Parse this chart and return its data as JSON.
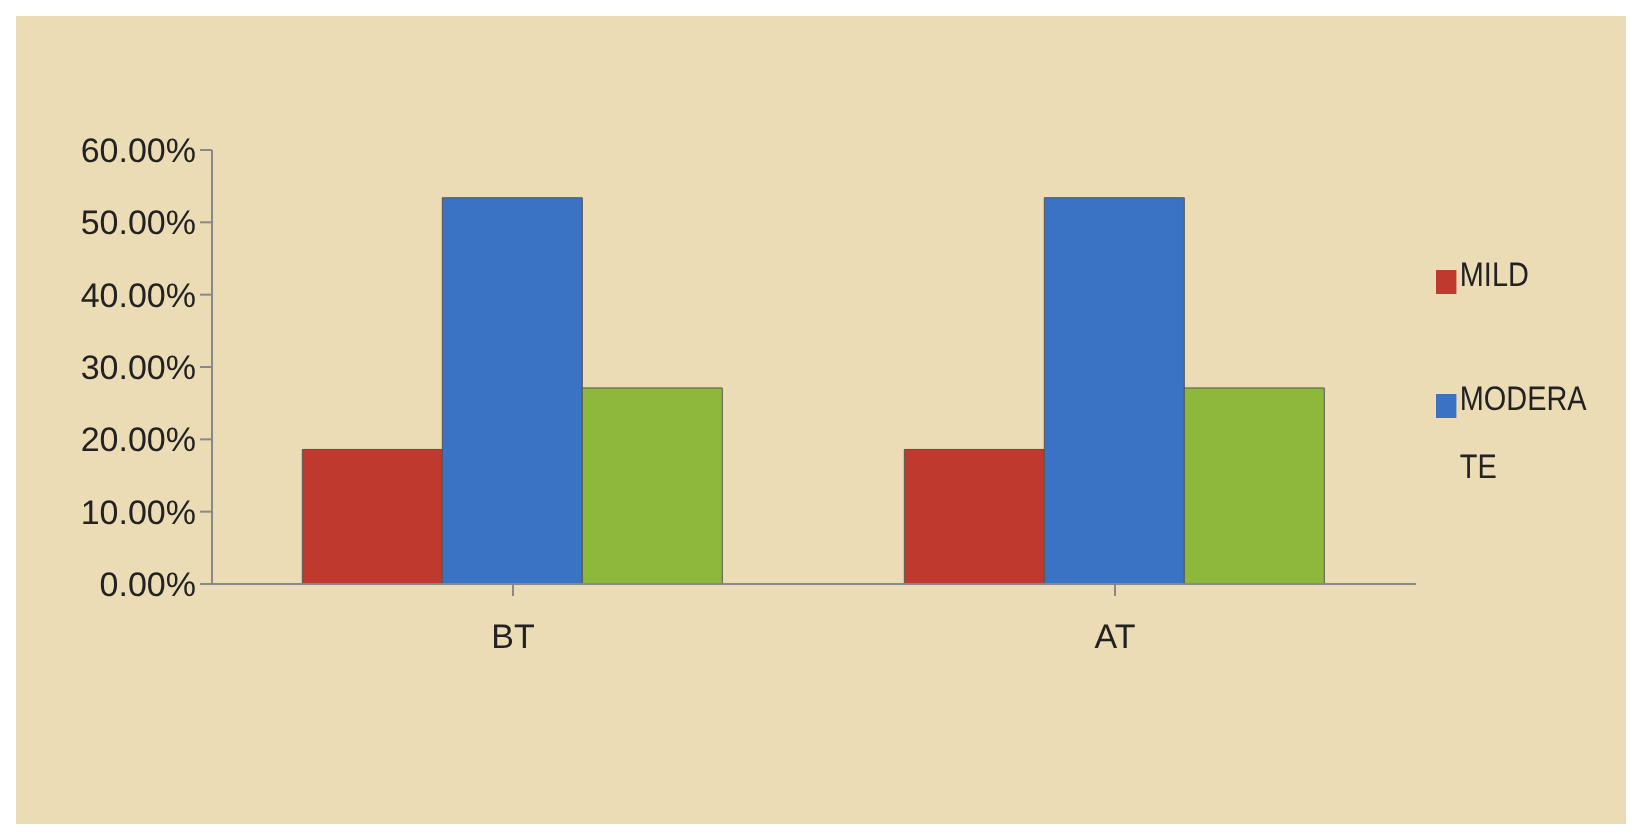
{
  "chart_data": {
    "type": "bar",
    "categories": [
      "BT",
      "AT"
    ],
    "series": [
      {
        "name": "MILD",
        "color": "#c0392f",
        "values": [
          18.6,
          18.6
        ]
      },
      {
        "name": "MODERATE",
        "color": "#3a72c4",
        "values": [
          53.4,
          53.4
        ]
      },
      {
        "color": "#8db83c",
        "values": [
          27.1,
          27.1
        ]
      }
    ],
    "ylim": [
      0,
      60
    ],
    "yticks": [
      {
        "value": 0,
        "label": "0.00%"
      },
      {
        "value": 10,
        "label": "10.00%"
      },
      {
        "value": 20,
        "label": "20.00%"
      },
      {
        "value": 30,
        "label": "30.00%"
      },
      {
        "value": 40,
        "label": "40.00%"
      },
      {
        "value": 50,
        "label": "50.00%"
      },
      {
        "value": 60,
        "label": "60.00%"
      }
    ],
    "grid": false,
    "legend": "right"
  }
}
